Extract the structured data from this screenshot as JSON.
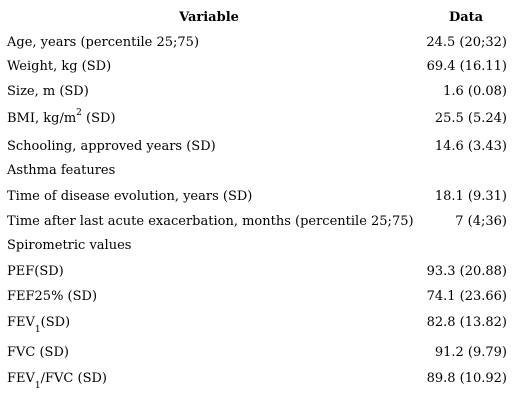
{
  "table": {
    "headers": {
      "variable": "Variable",
      "data": "Data"
    },
    "rows": [
      {
        "label": "Age, years (percentile 25;75)",
        "value": "24.5 (20;32)"
      },
      {
        "label": "Weight, kg (SD)",
        "value": "69.4 (16.11)"
      },
      {
        "label": "Size, m (SD)",
        "value": "1.6 (0.08)"
      },
      {
        "label_pre": "BMI, kg/m",
        "label_sup": "2",
        "label_post": " (SD)",
        "value": "25.5 (5.24)"
      },
      {
        "label": "Schooling, approved years (SD)",
        "value": "14.6 (3.43)"
      },
      {
        "label": "Asthma features",
        "value": ""
      },
      {
        "label": "Time of disease evolution, years (SD)",
        "value": "18.1 (9.31)"
      },
      {
        "label": "Time after last acute exacerbation, months (percentile 25;75)",
        "value": "7 (4;36)"
      },
      {
        "label": "Spirometric values",
        "value": ""
      },
      {
        "label": "PEF(SD)",
        "value": "93.3 (20.88)"
      },
      {
        "label": "FEF25% (SD)",
        "value": "74.1 (23.66)"
      },
      {
        "label_pre": "FEV",
        "label_sub": "1",
        "label_post": "(SD)",
        "value": "82.8 (13.82)"
      },
      {
        "label": "FVC (SD)",
        "value": "91.2 (9.79)"
      },
      {
        "label_pre": "FEV",
        "label_sub": "1",
        "label_post": "/FVC (SD)",
        "value": "89.8 (10.92)"
      }
    ]
  }
}
